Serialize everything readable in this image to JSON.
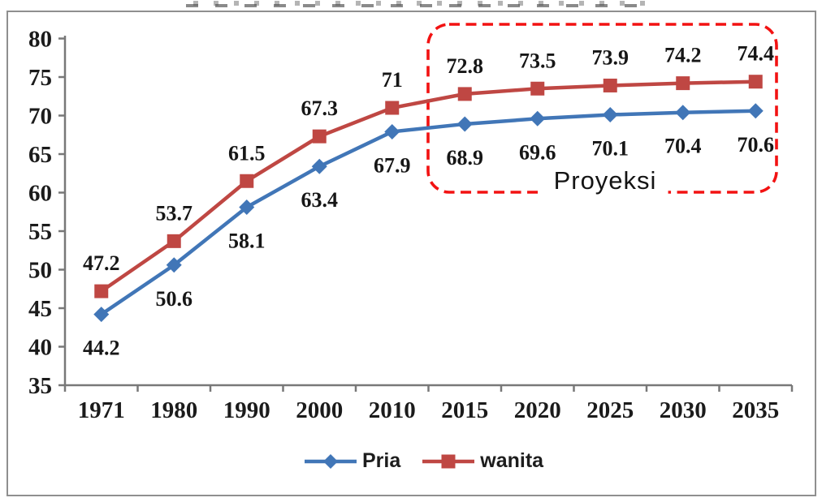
{
  "chart_data": {
    "type": "line",
    "categories": [
      "1971",
      "1980",
      "1990",
      "2000",
      "2010",
      "2015",
      "2020",
      "2025",
      "2030",
      "2035"
    ],
    "series": [
      {
        "name": "Pria",
        "marker": "diamond",
        "color": "#4176b7",
        "values": [
          44.2,
          50.6,
          58.1,
          63.4,
          67.9,
          68.9,
          69.6,
          70.1,
          70.4,
          70.6
        ],
        "labels": [
          "44.2",
          "50.6",
          "58.1",
          "63.4",
          "67.9",
          "68.9",
          "69.6",
          "70.1",
          "70.4",
          "70.6"
        ],
        "label_position": "below"
      },
      {
        "name": "wanita",
        "marker": "square",
        "color": "#bf4743",
        "values": [
          47.2,
          53.7,
          61.5,
          67.3,
          71,
          72.8,
          73.5,
          73.9,
          74.2,
          74.4
        ],
        "labels": [
          "47.2",
          "53.7",
          "61.5",
          "67.3",
          "71",
          "72.8",
          "73.5",
          "73.9",
          "74.2",
          "74.4"
        ],
        "label_position": "above"
      }
    ],
    "ylim": [
      35,
      80
    ],
    "y_ticks": [
      35,
      40,
      45,
      50,
      55,
      60,
      65,
      70,
      75,
      80
    ],
    "grid": false,
    "legend_position": "bottom-center",
    "annotation": {
      "label": "Proyeksi",
      "style": "red-dashed-rounded-box",
      "from_category": "2015",
      "to_category": "2035",
      "color": "#f21212"
    }
  }
}
